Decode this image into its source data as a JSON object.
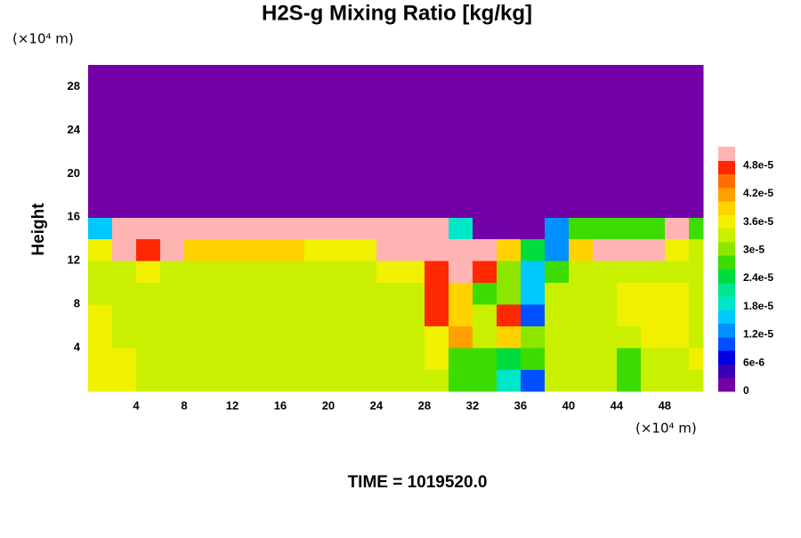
{
  "chart_data": {
    "type": "heatmap",
    "title": "H2S-g Mixing Ratio [kg/kg]",
    "y_label": "Height",
    "x_unit": "(×10⁴ m)",
    "y_unit": "(×10⁴ m)",
    "footer": "TIME = 1019520.0",
    "xlim": [
      0,
      51.2
    ],
    "ylim": [
      0,
      30
    ],
    "xticks": [
      4,
      8,
      12,
      16,
      20,
      24,
      28,
      32,
      36,
      40,
      44,
      48
    ],
    "yticks": [
      4,
      8,
      12,
      16,
      20,
      24,
      28
    ],
    "x_edges": [
      0,
      2,
      4,
      6,
      8,
      10,
      12,
      14,
      16,
      18,
      20,
      22,
      24,
      26,
      28,
      30,
      32,
      34,
      36,
      38,
      40,
      42,
      44,
      46,
      48,
      50,
      51.2
    ],
    "y_edges": [
      0,
      2,
      4,
      6,
      8,
      10,
      12,
      14,
      16,
      30
    ],
    "z": [
      [
        3.6e-05,
        3.6e-05,
        3.3e-05,
        3.3e-05,
        3.3e-05,
        3.3e-05,
        3.3e-05,
        3.3e-05,
        3.3e-05,
        3.3e-05,
        3.3e-05,
        3.3e-05,
        3.3e-05,
        3.3e-05,
        3.3e-05,
        2.7e-05,
        2.7e-05,
        1.8e-05,
        1e-05,
        3.3e-05,
        3.3e-05,
        3.3e-05,
        2.7e-05,
        3.3e-05,
        3.3e-05,
        3.3e-05
      ],
      [
        3.6e-05,
        3.6e-05,
        3.3e-05,
        3.3e-05,
        3.3e-05,
        3.3e-05,
        3.3e-05,
        3.3e-05,
        3.3e-05,
        3.3e-05,
        3.3e-05,
        3.3e-05,
        3.3e-05,
        3.3e-05,
        3.6e-05,
        2.7e-05,
        2.7e-05,
        2.4e-05,
        2.7e-05,
        3.3e-05,
        3.3e-05,
        3.3e-05,
        2.7e-05,
        3.3e-05,
        3.3e-05,
        3.6e-05
      ],
      [
        3.6e-05,
        3.3e-05,
        3.3e-05,
        3.3e-05,
        3.3e-05,
        3.3e-05,
        3.3e-05,
        3.3e-05,
        3.3e-05,
        3.3e-05,
        3.3e-05,
        3.3e-05,
        3.3e-05,
        3.3e-05,
        3.6e-05,
        4.3e-05,
        3.3e-05,
        4e-05,
        3e-05,
        3.3e-05,
        3.3e-05,
        3.3e-05,
        3.3e-05,
        3.6e-05,
        3.6e-05,
        3.3e-05
      ],
      [
        3.6e-05,
        3.3e-05,
        3.3e-05,
        3.3e-05,
        3.3e-05,
        3.3e-05,
        3.3e-05,
        3.3e-05,
        3.3e-05,
        3.3e-05,
        3.3e-05,
        3.3e-05,
        3.3e-05,
        3.3e-05,
        4.8e-05,
        4e-05,
        3.3e-05,
        4.8e-05,
        1e-05,
        3.3e-05,
        3.3e-05,
        3.3e-05,
        3.6e-05,
        3.6e-05,
        3.6e-05,
        3.3e-05
      ],
      [
        3.3e-05,
        3.3e-05,
        3.3e-05,
        3.3e-05,
        3.3e-05,
        3.3e-05,
        3.3e-05,
        3.3e-05,
        3.3e-05,
        3.3e-05,
        3.3e-05,
        3.3e-05,
        3.3e-05,
        3.3e-05,
        4.8e-05,
        4e-05,
        2.7e-05,
        3e-05,
        1.5e-05,
        3.3e-05,
        3.3e-05,
        3.3e-05,
        3.6e-05,
        3.6e-05,
        3.6e-05,
        3.3e-05
      ],
      [
        3.3e-05,
        3.3e-05,
        3.6e-05,
        3.3e-05,
        3.3e-05,
        3.3e-05,
        3.3e-05,
        3.3e-05,
        3.3e-05,
        3.3e-05,
        3.3e-05,
        3.3e-05,
        3.6e-05,
        3.6e-05,
        4.8e-05,
        5.2e-05,
        4.8e-05,
        3e-05,
        1.5e-05,
        2.7e-05,
        3.3e-05,
        3.3e-05,
        3.3e-05,
        3.3e-05,
        3.3e-05,
        3.3e-05
      ],
      [
        3.6e-05,
        5.2e-05,
        4.8e-05,
        5.2e-05,
        4e-05,
        4e-05,
        4e-05,
        4e-05,
        4e-05,
        3.6e-05,
        3.6e-05,
        3.6e-05,
        5.2e-05,
        5.2e-05,
        5.2e-05,
        5.2e-05,
        5.2e-05,
        4e-05,
        2.4e-05,
        1.2e-05,
        4e-05,
        5.2e-05,
        5.2e-05,
        5.2e-05,
        3.6e-05,
        3.3e-05
      ],
      [
        1.5e-05,
        5.2e-05,
        5.2e-05,
        5.2e-05,
        5.2e-05,
        5.2e-05,
        5.2e-05,
        5.2e-05,
        5.2e-05,
        5.2e-05,
        5.2e-05,
        5.2e-05,
        5.2e-05,
        5.2e-05,
        5.2e-05,
        1.8e-05,
        0,
        0,
        0,
        1.2e-05,
        2.7e-05,
        2.7e-05,
        2.7e-05,
        2.7e-05,
        5.2e-05,
        2.7e-05
      ],
      [
        0,
        0,
        0,
        0,
        0,
        0,
        0,
        0,
        0,
        0,
        0,
        0,
        0,
        0,
        0,
        0,
        0,
        0,
        0,
        0,
        0,
        0,
        0,
        0,
        0,
        0
      ]
    ],
    "zlim": [
      0,
      5.2e-05
    ],
    "colors": [
      "#7300a6",
      "#3c00b4",
      "#0000e0",
      "#0050ff",
      "#0090ff",
      "#00c8ff",
      "#00e6c8",
      "#00e68c",
      "#00dc3c",
      "#3cdc00",
      "#8ce600",
      "#c8f000",
      "#f0f000",
      "#ffd200",
      "#ffa000",
      "#ff6e00",
      "#ff2800",
      "#ffb4b4"
    ],
    "colorbar_ticks": [
      0,
      {
        "value": 6e-06,
        "label": "6e-6"
      },
      {
        "value": 1.2e-05,
        "label": "1.2e-5"
      },
      {
        "value": 1.8e-05,
        "label": "1.8e-5"
      },
      {
        "value": 2.4e-05,
        "label": "2.4e-5"
      },
      {
        "value": 3e-05,
        "label": "3e-5"
      },
      {
        "value": 3.6e-05,
        "label": "3.6e-5"
      },
      {
        "value": 4.2e-05,
        "label": "4.2e-5"
      },
      {
        "value": 4.8e-05,
        "label": "4.8e-5"
      }
    ]
  }
}
